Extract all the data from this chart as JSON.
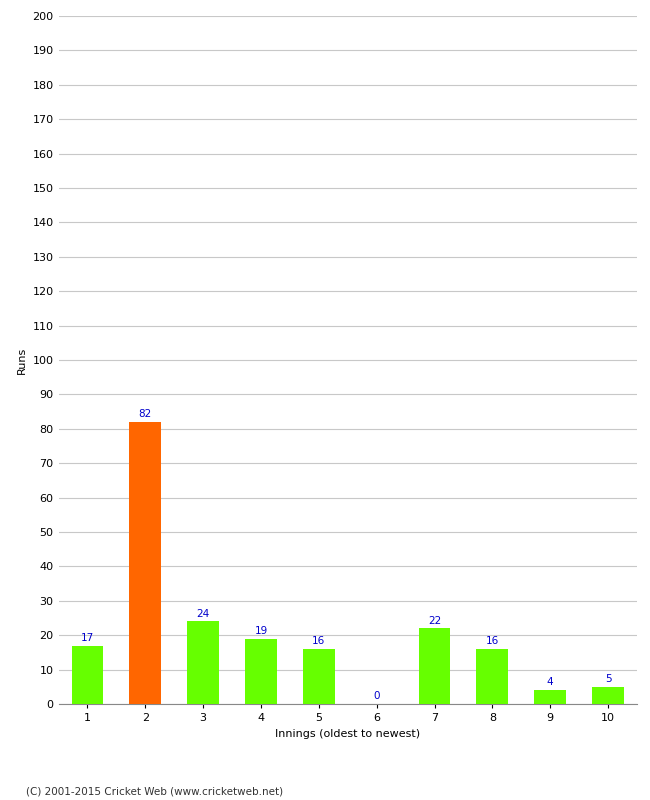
{
  "categories": [
    "1",
    "2",
    "3",
    "4",
    "5",
    "6",
    "7",
    "8",
    "9",
    "10"
  ],
  "values": [
    17,
    82,
    24,
    19,
    16,
    0,
    22,
    16,
    4,
    5
  ],
  "bar_colors": [
    "#66ff00",
    "#ff6600",
    "#66ff00",
    "#66ff00",
    "#66ff00",
    "#66ff00",
    "#66ff00",
    "#66ff00",
    "#66ff00",
    "#66ff00"
  ],
  "xlabel": "Innings (oldest to newest)",
  "ylabel": "Runs",
  "ylim": [
    0,
    200
  ],
  "yticks": [
    0,
    10,
    20,
    30,
    40,
    50,
    60,
    70,
    80,
    90,
    100,
    110,
    120,
    130,
    140,
    150,
    160,
    170,
    180,
    190,
    200
  ],
  "label_color": "#0000cc",
  "grid_color": "#c8c8c8",
  "background_color": "#ffffff",
  "footer": "(C) 2001-2015 Cricket Web (www.cricketweb.net)",
  "label_fontsize": 7.5,
  "axis_tick_fontsize": 8,
  "axis_label_fontsize": 8,
  "footer_fontsize": 7.5,
  "bar_width": 0.55
}
